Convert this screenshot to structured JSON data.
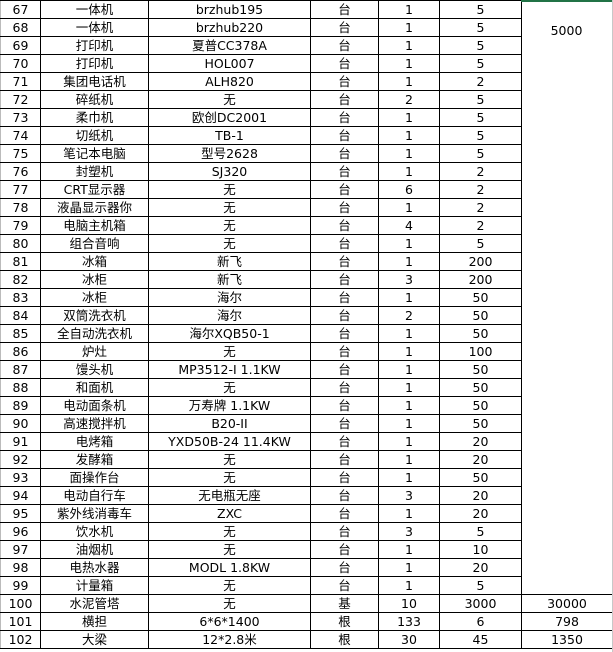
{
  "accent_color": "#217346",
  "merged_total": "5000",
  "rows": [
    {
      "no": "67",
      "name": "一体机",
      "model": "brzhub195",
      "unit": "台",
      "qty": "1",
      "price": "5",
      "total": ""
    },
    {
      "no": "68",
      "name": "一体机",
      "model": "brzhub220",
      "unit": "台",
      "qty": "1",
      "price": "5",
      "total": ""
    },
    {
      "no": "69",
      "name": "打印机",
      "model": "夏普CC378A",
      "unit": "台",
      "qty": "1",
      "price": "5",
      "total": ""
    },
    {
      "no": "70",
      "name": "打印机",
      "model": "HOL007",
      "unit": "台",
      "qty": "1",
      "price": "5",
      "total": ""
    },
    {
      "no": "71",
      "name": "集团电话机",
      "model": "ALH820",
      "unit": "台",
      "qty": "1",
      "price": "2",
      "total": ""
    },
    {
      "no": "72",
      "name": "碎纸机",
      "model": "无",
      "unit": "台",
      "qty": "2",
      "price": "5",
      "total": ""
    },
    {
      "no": "73",
      "name": "柔巾机",
      "model": "欧创DC2001",
      "unit": "台",
      "qty": "1",
      "price": "5",
      "total": ""
    },
    {
      "no": "74",
      "name": "切纸机",
      "model": "TB-1",
      "unit": "台",
      "qty": "1",
      "price": "5",
      "total": ""
    },
    {
      "no": "75",
      "name": "笔记本电脑",
      "model": "型号2628",
      "unit": "台",
      "qty": "1",
      "price": "5",
      "total": ""
    },
    {
      "no": "76",
      "name": "封塑机",
      "model": "SJ320",
      "unit": "台",
      "qty": "1",
      "price": "2",
      "total": ""
    },
    {
      "no": "77",
      "name": "CRT显示器",
      "model": "无",
      "unit": "台",
      "qty": "6",
      "price": "2",
      "total": ""
    },
    {
      "no": "78",
      "name": "液晶显示器你",
      "model": "无",
      "unit": "台",
      "qty": "1",
      "price": "2",
      "total": ""
    },
    {
      "no": "79",
      "name": "电脑主机箱",
      "model": "无",
      "unit": "台",
      "qty": "4",
      "price": "2",
      "total": ""
    },
    {
      "no": "80",
      "name": "组合音响",
      "model": "无",
      "unit": "台",
      "qty": "1",
      "price": "5",
      "total": ""
    },
    {
      "no": "81",
      "name": "冰箱",
      "model": "新飞",
      "unit": "台",
      "qty": "1",
      "price": "200",
      "total": ""
    },
    {
      "no": "82",
      "name": "冰柜",
      "model": "新飞",
      "unit": "台",
      "qty": "3",
      "price": "200",
      "total": ""
    },
    {
      "no": "83",
      "name": "冰柜",
      "model": "海尔",
      "unit": "台",
      "qty": "1",
      "price": "50",
      "total": ""
    },
    {
      "no": "84",
      "name": "双筒洗衣机",
      "model": "海尔",
      "unit": "台",
      "qty": "2",
      "price": "50",
      "total": ""
    },
    {
      "no": "85",
      "name": "全自动洗衣机",
      "model": "海尔XQB50-1",
      "unit": "台",
      "qty": "1",
      "price": "50",
      "total": ""
    },
    {
      "no": "86",
      "name": "炉灶",
      "model": "无",
      "unit": "台",
      "qty": "1",
      "price": "100",
      "total": ""
    },
    {
      "no": "87",
      "name": "馒头机",
      "model": "MP3512-I 1.1KW",
      "unit": "台",
      "qty": "1",
      "price": "50",
      "total": ""
    },
    {
      "no": "88",
      "name": "和面机",
      "model": "无",
      "unit": "台",
      "qty": "1",
      "price": "50",
      "total": ""
    },
    {
      "no": "89",
      "name": "电动面条机",
      "model": "万寿牌 1.1KW",
      "unit": "台",
      "qty": "1",
      "price": "50",
      "total": ""
    },
    {
      "no": "90",
      "name": "高速搅拌机",
      "model": "B20-II",
      "unit": "台",
      "qty": "1",
      "price": "50",
      "total": ""
    },
    {
      "no": "91",
      "name": "电烤箱",
      "model": "YXD50B-24 11.4KW",
      "unit": "台",
      "qty": "1",
      "price": "20",
      "total": ""
    },
    {
      "no": "92",
      "name": "发酵箱",
      "model": "无",
      "unit": "台",
      "qty": "1",
      "price": "20",
      "total": ""
    },
    {
      "no": "93",
      "name": "面操作台",
      "model": "无",
      "unit": "台",
      "qty": "1",
      "price": "50",
      "total": ""
    },
    {
      "no": "94",
      "name": "电动自行车",
      "model": "无电瓶无座",
      "unit": "台",
      "qty": "3",
      "price": "20",
      "total": ""
    },
    {
      "no": "95",
      "name": "紫外线消毒车",
      "model": "ZXC",
      "unit": "台",
      "qty": "1",
      "price": "20",
      "total": ""
    },
    {
      "no": "96",
      "name": "饮水机",
      "model": "无",
      "unit": "台",
      "qty": "3",
      "price": "5",
      "total": ""
    },
    {
      "no": "97",
      "name": "油烟机",
      "model": "无",
      "unit": "台",
      "qty": "1",
      "price": "10",
      "total": ""
    },
    {
      "no": "98",
      "name": "电热水器",
      "model": "MODL 1.8KW",
      "unit": "台",
      "qty": "1",
      "price": "20",
      "total": ""
    },
    {
      "no": "99",
      "name": "计量箱",
      "model": "无",
      "unit": "台",
      "qty": "1",
      "price": "5",
      "total": ""
    },
    {
      "no": "100",
      "name": "水泥管塔",
      "model": "无",
      "unit": "基",
      "qty": "10",
      "price": "3000",
      "total": "30000"
    },
    {
      "no": "101",
      "name": "横担",
      "model": "6*6*1400",
      "unit": "根",
      "qty": "133",
      "price": "6",
      "total": "798"
    },
    {
      "no": "102",
      "name": "大梁",
      "model": "12*2.8米",
      "unit": "根",
      "qty": "30",
      "price": "45",
      "total": "1350"
    }
  ]
}
